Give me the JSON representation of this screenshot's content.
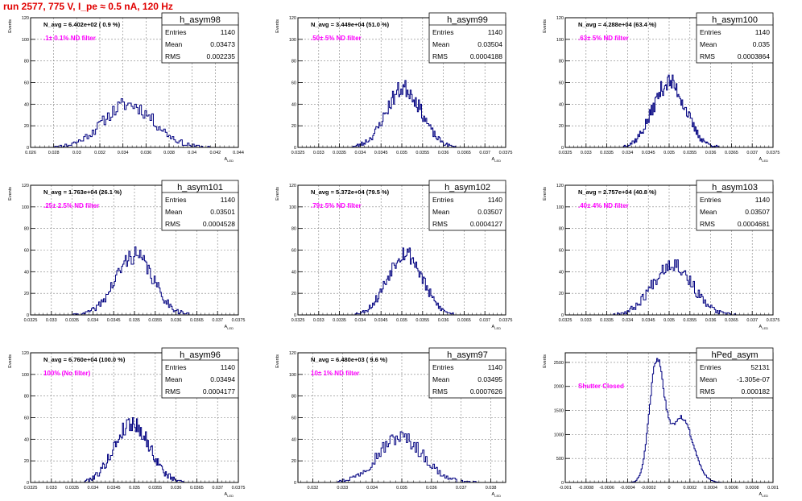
{
  "title": "run 2577,   775 V, I_pe ≈ 0.5 nA, 120 Hz",
  "colors": {
    "title": "#e00000",
    "hist": "#000080",
    "annotation": "#ff00ff",
    "grid": "#808080"
  },
  "common": {
    "ylabel": "Events",
    "xlabel": "A",
    "xlabel_sub": "LED",
    "stats_labels": [
      "Entries",
      "Mean",
      "RMS"
    ]
  },
  "chart_data": [
    {
      "type": "bar",
      "name": "h_asym98",
      "n_avg": "N_avg = 6.402e+02 ( 0.9 %)",
      "note": ".1± 0.1% ND filter",
      "entries": "1140",
      "mean": "0.03473",
      "rms": "0.002235",
      "xlim": [
        0.026,
        0.044
      ],
      "ylim": [
        0,
        120
      ],
      "xticks": [
        "0.026",
        "0.028",
        "0.03",
        "0.032",
        "0.034",
        "0.036",
        "0.038",
        "0.04",
        "0.042",
        "0.044"
      ],
      "yticks": [
        "0",
        "20",
        "40",
        "60",
        "80",
        "100",
        "120"
      ],
      "bins": {
        "center": 0.0345,
        "sigma": 0.0022,
        "peak": 40,
        "lo": 0.0275,
        "hi": 0.0415,
        "nbins": 95,
        "seed": 11
      }
    },
    {
      "type": "bar",
      "name": "h_asym99",
      "n_avg": "N_avg = 3.449e+04 (51.0 %)",
      "note": ".50± 5% ND filter",
      "entries": "1140",
      "mean": "0.03504",
      "rms": "0.0004188",
      "xlim": [
        0.0325,
        0.0375
      ],
      "ylim": [
        0,
        120
      ],
      "xticks": [
        "0.0325",
        "0.033",
        "0.0335",
        "0.034",
        "0.0345",
        "0.035",
        "0.0355",
        "0.036",
        "0.0365",
        "0.037",
        "0.0375"
      ],
      "yticks": [
        "0",
        "20",
        "40",
        "60",
        "80",
        "100",
        "120"
      ],
      "bins": {
        "center": 0.03505,
        "sigma": 0.00042,
        "peak": 55,
        "lo": 0.0338,
        "hi": 0.0363,
        "nbins": 100,
        "seed": 23
      }
    },
    {
      "type": "bar",
      "name": "h_asym100",
      "n_avg": "N_avg = 4.288e+04 (63.4 %)",
      "note": ".63± 5% ND filter",
      "entries": "1140",
      "mean": "0.035",
      "rms": "0.0003864",
      "xlim": [
        0.0325,
        0.0375
      ],
      "ylim": [
        0,
        120
      ],
      "xticks": [
        "0.0325",
        "0.033",
        "0.0335",
        "0.034",
        "0.0345",
        "0.035",
        "0.0355",
        "0.036",
        "0.0365",
        "0.037",
        "0.0375"
      ],
      "yticks": [
        "0",
        "20",
        "40",
        "60",
        "80",
        "100",
        "120"
      ],
      "bins": {
        "center": 0.035,
        "sigma": 0.00039,
        "peak": 60,
        "lo": 0.0339,
        "hi": 0.0362,
        "nbins": 100,
        "seed": 37
      }
    },
    {
      "type": "bar",
      "name": "h_asym101",
      "n_avg": "N_avg = 1.763e+04 (26.1 %)",
      "note": ".25± 2.5% ND filter",
      "entries": "1140",
      "mean": "0.03501",
      "rms": "0.0004528",
      "xlim": [
        0.0325,
        0.0375
      ],
      "ylim": [
        0,
        120
      ],
      "xticks": [
        "0.0325",
        "0.033",
        "0.0335",
        "0.034",
        "0.0345",
        "0.035",
        "0.0355",
        "0.036",
        "0.0365",
        "0.037",
        "0.0375"
      ],
      "yticks": [
        "0",
        "20",
        "40",
        "60",
        "80",
        "100",
        "120"
      ],
      "bins": {
        "center": 0.035,
        "sigma": 0.00045,
        "peak": 55,
        "lo": 0.0335,
        "hi": 0.0364,
        "nbins": 100,
        "seed": 41
      }
    },
    {
      "type": "bar",
      "name": "h_asym102",
      "n_avg": "N_avg = 5.372e+04 (79.5 %)",
      "note": ".79± 5% ND filter",
      "entries": "1140",
      "mean": "0.03507",
      "rms": "0.0004127",
      "xlim": [
        0.0325,
        0.0375
      ],
      "ylim": [
        0,
        120
      ],
      "xticks": [
        "0.0325",
        "0.033",
        "0.0335",
        "0.034",
        "0.0345",
        "0.035",
        "0.0355",
        "0.036",
        "0.0365",
        "0.037",
        "0.0375"
      ],
      "yticks": [
        "0",
        "20",
        "40",
        "60",
        "80",
        "100",
        "120"
      ],
      "bins": {
        "center": 0.03507,
        "sigma": 0.00041,
        "peak": 58,
        "lo": 0.0338,
        "hi": 0.0364,
        "nbins": 100,
        "seed": 53
      }
    },
    {
      "type": "bar",
      "name": "h_asym103",
      "n_avg": "N_avg = 2.757e+04 (40.8 %)",
      "note": ".40± 4% ND filter",
      "entries": "1140",
      "mean": "0.03507",
      "rms": "0.0004681",
      "xlim": [
        0.0325,
        0.0375
      ],
      "ylim": [
        0,
        120
      ],
      "xticks": [
        "0.0325",
        "0.033",
        "0.0335",
        "0.034",
        "0.0345",
        "0.035",
        "0.0355",
        "0.036",
        "0.0365",
        "0.037",
        "0.0375"
      ],
      "yticks": [
        "0",
        "20",
        "40",
        "60",
        "80",
        "100",
        "120"
      ],
      "bins": {
        "center": 0.03507,
        "sigma": 0.00047,
        "peak": 48,
        "lo": 0.0336,
        "hi": 0.0366,
        "nbins": 100,
        "seed": 67
      }
    },
    {
      "type": "bar",
      "name": "h_asym96",
      "n_avg": "N_avg = 6.760e+04 (100.0 %)",
      "note": "100% (No filter)",
      "entries": "1140",
      "mean": "0.03494",
      "rms": "0.0004177",
      "xlim": [
        0.0325,
        0.0375
      ],
      "ylim": [
        0,
        120
      ],
      "xticks": [
        "0.0325",
        "0.033",
        "0.0335",
        "0.034",
        "0.0345",
        "0.035",
        "0.0355",
        "0.036",
        "0.0365",
        "0.037",
        "0.0375"
      ],
      "yticks": [
        "0",
        "20",
        "40",
        "60",
        "80",
        "100",
        "120"
      ],
      "bins": {
        "center": 0.03494,
        "sigma": 0.00042,
        "peak": 55,
        "lo": 0.0338,
        "hi": 0.0362,
        "nbins": 100,
        "seed": 79
      }
    },
    {
      "type": "bar",
      "name": "h_asym97",
      "n_avg": "N_avg = 6.480e+03 ( 9.6 %)",
      "note": "10± 1% ND filter",
      "entries": "1140",
      "mean": "0.03495",
      "rms": "0.0007626",
      "xlim": [
        0.0315,
        0.0385
      ],
      "ylim": [
        0,
        120
      ],
      "xticks": [
        "0.032",
        "0.033",
        "0.034",
        "0.035",
        "0.036",
        "0.037",
        "0.038"
      ],
      "yticks": [
        "0",
        "20",
        "40",
        "60",
        "80",
        "100",
        "120"
      ],
      "bins": {
        "center": 0.03495,
        "sigma": 0.00076,
        "peak": 42,
        "lo": 0.0325,
        "hi": 0.0375,
        "nbins": 100,
        "seed": 97
      }
    },
    {
      "type": "bar",
      "name": "hPed_asym",
      "n_avg": "",
      "note": "Shutter Closed",
      "entries": "52131",
      "mean": "-1.305e-07",
      "rms": "0.000182",
      "xlim": [
        -0.001,
        0.001
      ],
      "ylim": [
        0,
        2700
      ],
      "xticks": [
        "-0.001",
        "-0.0008",
        "-0.0006",
        "-0.0004",
        "-0.0002",
        "0",
        "0.0002",
        "0.0004",
        "0.0006",
        "0.0008",
        "0.001"
      ],
      "yticks": [
        "0",
        "500",
        "1000",
        "1500",
        "2000",
        "2500"
      ],
      "bins": {
        "double": true,
        "c1": -0.00012,
        "s1": 7e-05,
        "p1": 2450,
        "c2": 0.00012,
        "s2": 0.00011,
        "p2": 1350,
        "lo": -0.0005,
        "hi": 0.0005,
        "nbins": 100,
        "seed": 113
      }
    }
  ]
}
